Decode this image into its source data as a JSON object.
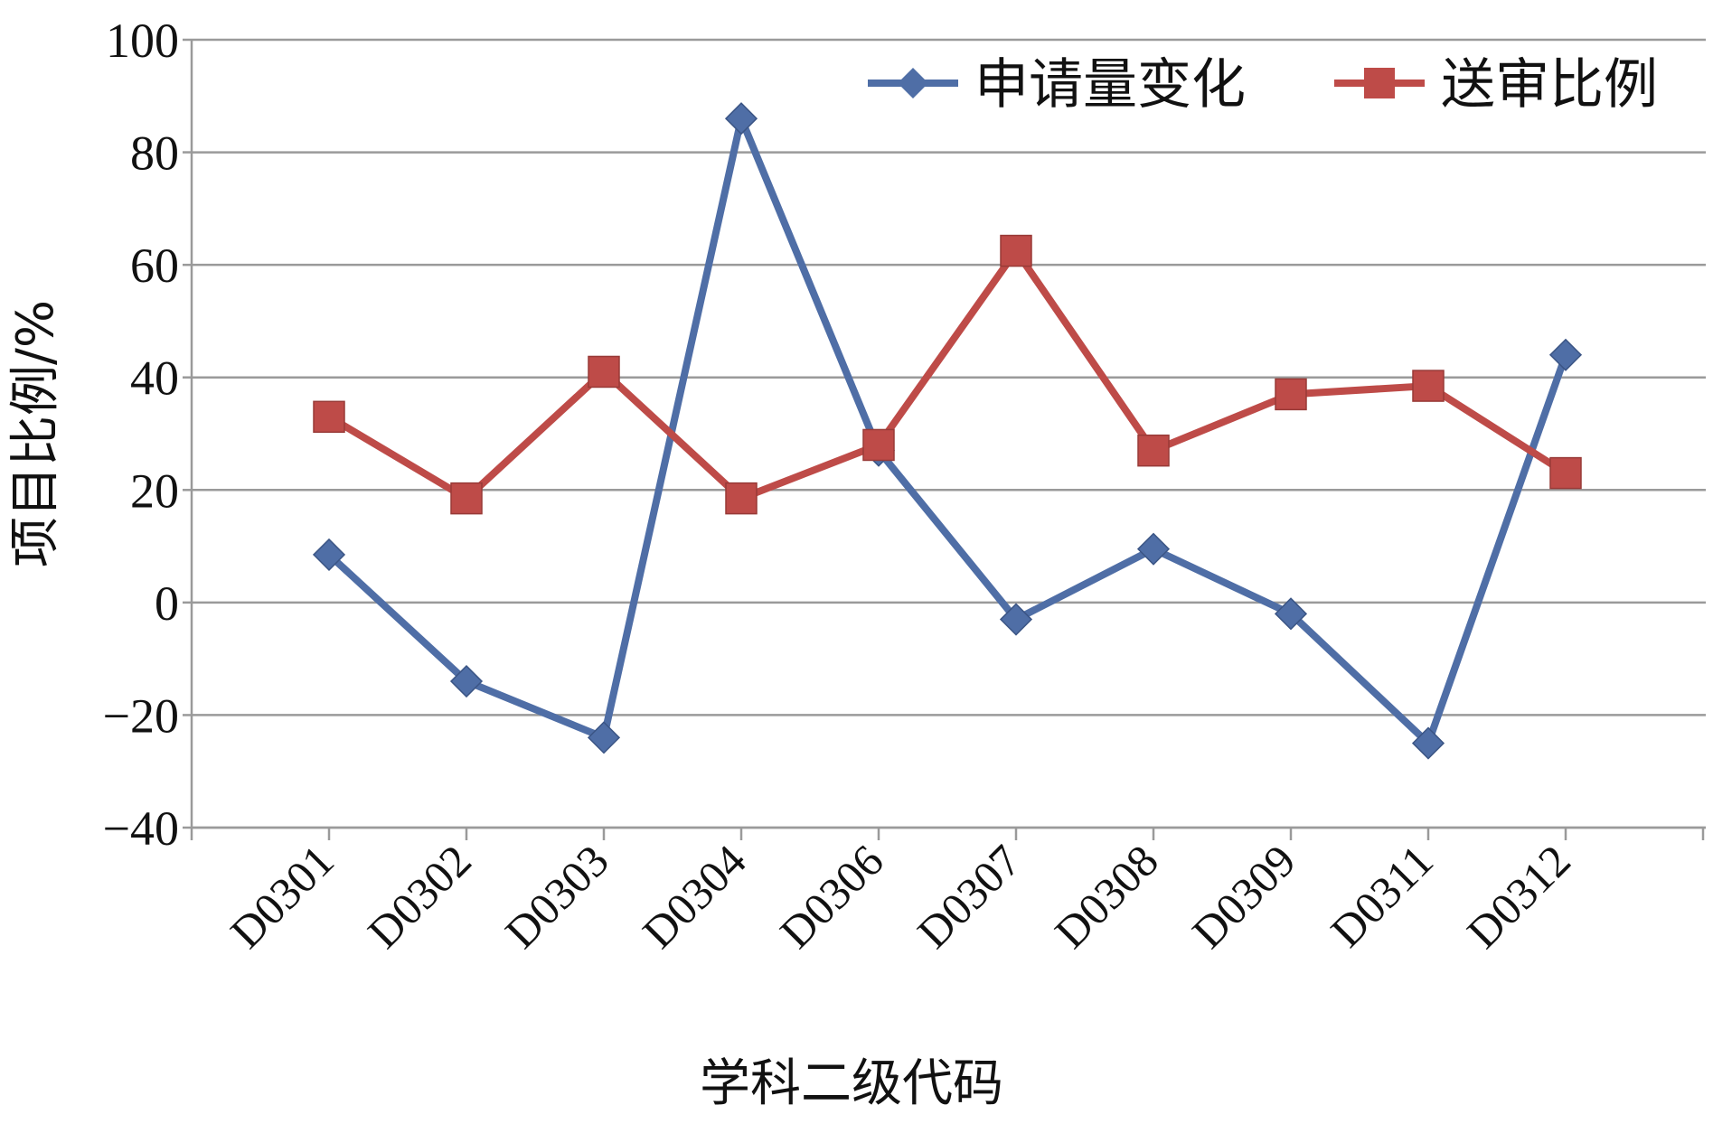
{
  "chart_data": {
    "type": "line",
    "categories": [
      "D0301",
      "D0302",
      "D0303",
      "D0304",
      "D0306",
      "D0307",
      "D0308",
      "D0309",
      "D0311",
      "D0312"
    ],
    "series": [
      {
        "name": "申请量变化",
        "color": "#4F6EA6",
        "marker": "diamond",
        "values": [
          8.5,
          -14,
          -24,
          86,
          27,
          -3,
          9.5,
          -2,
          -25,
          44
        ]
      },
      {
        "name": "送审比例",
        "color": "#BE4B48",
        "marker": "square",
        "values": [
          33,
          18.5,
          41,
          18.5,
          28,
          62.5,
          27,
          37,
          38.5,
          23
        ]
      }
    ],
    "title": "",
    "xlabel": "学科二级代码",
    "ylabel": "项目比例/%",
    "ylim": [
      -40,
      100
    ],
    "yticks": [
      -40,
      -20,
      0,
      20,
      40,
      60,
      80,
      100
    ],
    "ytick_labels": [
      "−40",
      "−20",
      "0",
      "20",
      "40",
      "60",
      "80",
      "100"
    ],
    "grid": true,
    "legend_position": "top-right"
  }
}
